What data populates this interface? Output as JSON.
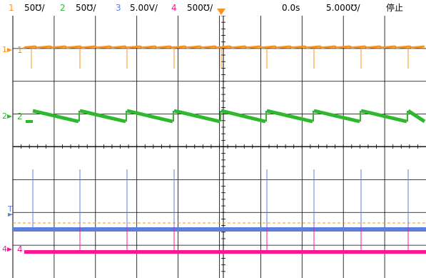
{
  "status_bar": {
    "ch1": {
      "num": "1",
      "scale": "50℧/"
    },
    "ch2": {
      "num": "2",
      "scale": "50℧/"
    },
    "ch3": {
      "num": "3",
      "scale": "5.00V/"
    },
    "ch4": {
      "num": "4",
      "scale": "500℧/"
    },
    "time_offset": "0.0s",
    "time_scale": "5.000℧/",
    "run_state": "停止"
  },
  "channels": {
    "ch1": {
      "label": "1",
      "color": "#f7931e"
    },
    "ch2": {
      "label": "2",
      "color": "#2eb82e"
    },
    "ch3": {
      "label": "T",
      "color": "#5b7fe0"
    },
    "ch4": {
      "label": "4",
      "color": "#ff1493"
    }
  },
  "grid": {
    "divisions_x": 10,
    "divisions_y": 8,
    "color": "#000000"
  },
  "trigger_marker_color": "#f7931e"
}
